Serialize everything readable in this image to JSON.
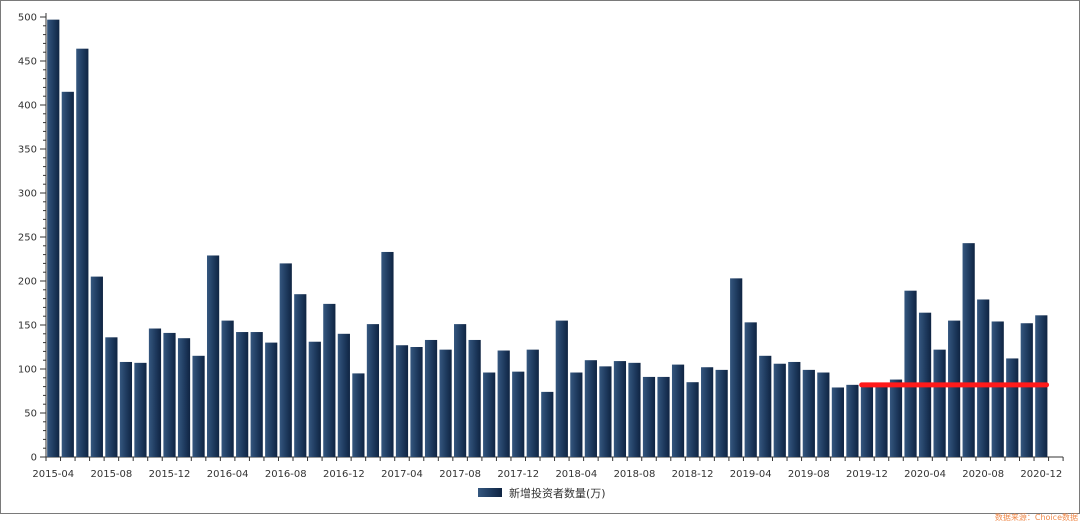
{
  "chart_data": {
    "type": "bar",
    "title": "",
    "xlabel": "",
    "ylabel": "",
    "ylim": [
      0,
      500
    ],
    "yticks": [
      0,
      50,
      100,
      150,
      200,
      250,
      300,
      350,
      400,
      450,
      500
    ],
    "grid": false,
    "legend_position": "bottom-center",
    "categories": [
      "2015-04",
      "2015-05",
      "2015-06",
      "2015-07",
      "2015-08",
      "2015-09",
      "2015-10",
      "2015-11",
      "2015-12",
      "2016-01",
      "2016-02",
      "2016-03",
      "2016-04",
      "2016-05",
      "2016-06",
      "2016-07",
      "2016-08",
      "2016-09",
      "2016-10",
      "2016-11",
      "2016-12",
      "2017-01",
      "2017-02",
      "2017-03",
      "2017-04",
      "2017-05",
      "2017-06",
      "2017-07",
      "2017-08",
      "2017-09",
      "2017-10",
      "2017-11",
      "2017-12",
      "2018-01",
      "2018-02",
      "2018-03",
      "2018-04",
      "2018-05",
      "2018-06",
      "2018-07",
      "2018-08",
      "2018-09",
      "2018-10",
      "2018-11",
      "2018-12",
      "2019-01",
      "2019-02",
      "2019-03",
      "2019-04",
      "2019-05",
      "2019-06",
      "2019-07",
      "2019-08",
      "2019-09",
      "2019-10",
      "2019-11",
      "2019-12",
      "2020-01",
      "2020-02",
      "2020-03",
      "2020-04",
      "2020-05",
      "2020-06",
      "2020-07",
      "2020-08",
      "2020-09",
      "2020-10",
      "2020-11",
      "2020-12",
      "2021-01"
    ],
    "x_tick_labels": [
      "2015-04",
      "2015-08",
      "2015-12",
      "2016-04",
      "2016-08",
      "2016-12",
      "2017-04",
      "2017-08",
      "2017-12",
      "2018-04",
      "2018-08",
      "2018-12",
      "2019-04",
      "2019-08",
      "2019-12",
      "2020-04",
      "2020-08",
      "2020-12"
    ],
    "series": [
      {
        "name": "新增投资者数量(万)",
        "color": "#1f3a5f",
        "values": [
          497,
          415,
          464,
          205,
          136,
          108,
          107,
          146,
          141,
          135,
          115,
          229,
          155,
          142,
          142,
          130,
          220,
          185,
          131,
          174,
          140,
          95,
          151,
          233,
          127,
          125,
          133,
          122,
          151,
          133,
          96,
          121,
          97,
          122,
          74,
          155,
          96,
          110,
          103,
          109,
          107,
          91,
          91,
          105,
          85,
          102,
          99,
          203,
          153,
          115,
          106,
          108,
          99,
          96,
          79,
          82,
          80,
          83,
          88,
          189,
          164,
          122,
          155,
          243,
          179,
          154,
          112,
          152,
          161,
          0
        ]
      }
    ],
    "reference_line": {
      "value": 82,
      "from": "2019-12",
      "to": "2020-12",
      "color": "#ff1a1a"
    }
  },
  "legend": {
    "label": "新增投资者数量(万)"
  },
  "source_note": "数据来源：Choice数据"
}
